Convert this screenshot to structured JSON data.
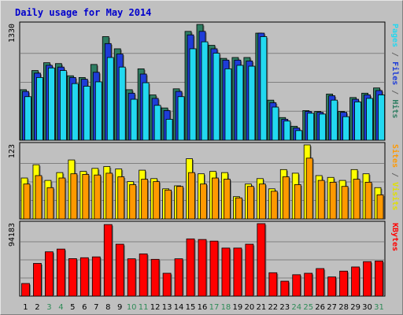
{
  "chart_data": [
    {
      "type": "bar",
      "title": "Daily usage for May 2014",
      "categories": [
        "1",
        "2",
        "3",
        "4",
        "5",
        "6",
        "7",
        "8",
        "9",
        "10",
        "11",
        "12",
        "13",
        "14",
        "15",
        "16",
        "17",
        "18",
        "19",
        "20",
        "21",
        "22",
        "23",
        "24",
        "25",
        "26",
        "27",
        "28",
        "29",
        "30",
        "31"
      ],
      "weekend_days": [
        "3",
        "4",
        "10",
        "11",
        "17",
        "18",
        "24",
        "25",
        "31"
      ],
      "ylim": [
        0,
        1330
      ],
      "y_max_label": "1330",
      "series": [
        {
          "name": "Hits",
          "color": "#2e7d62",
          "values": [
            580,
            800,
            890,
            880,
            740,
            720,
            870,
            1190,
            1050,
            580,
            820,
            520,
            370,
            590,
            1250,
            1330,
            1090,
            940,
            950,
            950,
            1230,
            460,
            260,
            160,
            340,
            330,
            530,
            330,
            490,
            540,
            600
          ]
        },
        {
          "name": "Files",
          "color": "#1e3cd8",
          "values": [
            560,
            770,
            860,
            840,
            720,
            700,
            780,
            1110,
            990,
            540,
            760,
            480,
            340,
            560,
            1210,
            1250,
            1050,
            920,
            920,
            910,
            1230,
            430,
            240,
            140,
            330,
            320,
            510,
            320,
            470,
            520,
            570
          ]
        },
        {
          "name": "Pages",
          "color": "#22d8f0",
          "values": [
            500,
            720,
            830,
            800,
            650,
            620,
            670,
            950,
            840,
            470,
            660,
            400,
            240,
            500,
            1050,
            1130,
            1000,
            820,
            860,
            850,
            1190,
            380,
            220,
            110,
            310,
            300,
            460,
            270,
            440,
            480,
            520
          ]
        }
      ],
      "right_label_parts": [
        {
          "text": "Pages",
          "color": "#22d8f0"
        },
        {
          "text": " / ",
          "color": "#666666"
        },
        {
          "text": "Files",
          "color": "#1e3cd8"
        },
        {
          "text": " / ",
          "color": "#666666"
        },
        {
          "text": "Hits",
          "color": "#2e7d62"
        }
      ]
    },
    {
      "type": "bar",
      "ylim": [
        0,
        123
      ],
      "y_max_label": "123",
      "series": [
        {
          "name": "Visits",
          "color": "#ffff00",
          "values": [
            68,
            90,
            64,
            77,
            98,
            79,
            84,
            87,
            83,
            62,
            81,
            67,
            50,
            55,
            100,
            75,
            79,
            77,
            37,
            58,
            67,
            50,
            82,
            76,
            123,
            72,
            69,
            64,
            82,
            75,
            52
          ]
        },
        {
          "name": "Sites",
          "color": "#ff9900",
          "values": [
            58,
            72,
            52,
            68,
            75,
            74,
            73,
            76,
            70,
            57,
            66,
            62,
            48,
            54,
            77,
            58,
            68,
            66,
            35,
            54,
            58,
            46,
            70,
            57,
            101,
            64,
            61,
            54,
            66,
            61,
            40
          ]
        }
      ],
      "right_label_parts": [
        {
          "text": "Sites",
          "color": "#ff9900"
        },
        {
          "text": " / ",
          "color": "#666666"
        },
        {
          "text": "Visits",
          "color": "#e0e000"
        }
      ]
    },
    {
      "type": "bar",
      "ylim": [
        0,
        94183
      ],
      "y_max_label": "94183",
      "series": [
        {
          "name": "KBytes",
          "color": "#ff0000",
          "values": [
            16400,
            42500,
            57600,
            61200,
            48700,
            49900,
            51000,
            93000,
            67500,
            48500,
            54900,
            47800,
            29700,
            48500,
            74400,
            73600,
            71500,
            62500,
            62500,
            67500,
            94200,
            30400,
            19400,
            27800,
            29700,
            35800,
            24900,
            32500,
            37900,
            44800,
            45600
          ]
        }
      ],
      "right_label_parts": [
        {
          "text": "KBytes",
          "color": "#ff0000"
        }
      ]
    }
  ],
  "colors": {
    "background": "#c0c0c0",
    "title": "#0000cc",
    "weekday_label": "#000000",
    "weekend_label": "#2e8b57",
    "shadow": "#707070",
    "gridline": "#808080"
  }
}
